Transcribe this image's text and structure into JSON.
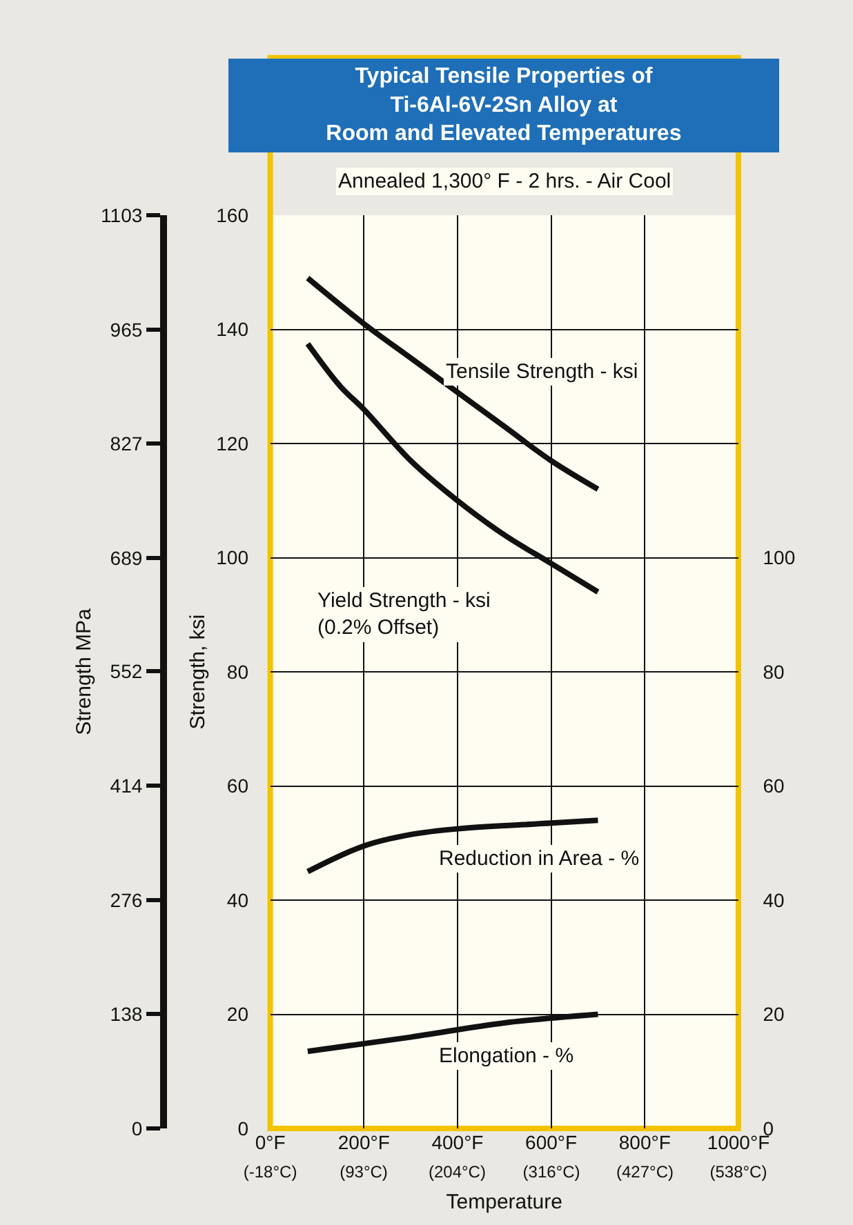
{
  "chart_data": {
    "type": "line",
    "title": "Typical Tensile Properties of\nTi-6Al-6V-2Sn Alloy at\nRoom and Elevated Temperatures",
    "xlabel": "Temperature",
    "ylabel": "Strength, ksi",
    "y2label": "Strength MPa",
    "annotations": [
      "Annealed 1,300° F - 2 hrs. - Air Cool"
    ],
    "series": [
      {
        "name": "Tensile Strength - ksi",
        "color": "#111111",
        "x": [
          80,
          200,
          300,
          400,
          500,
          600,
          700
        ],
        "values": [
          149,
          141,
          135,
          129,
          123,
          117,
          112
        ]
      },
      {
        "name": "Yield Strength - ksi\n(0.2% Offset)",
        "color": "#111111",
        "x": [
          80,
          150,
          200,
          300,
          400,
          500,
          600,
          700
        ],
        "values": [
          137.5,
          130,
          126,
          117,
          110,
          104,
          99,
          94
        ]
      },
      {
        "name": "Reduction in Area - %",
        "color": "#111111",
        "axis": "y3",
        "x": [
          80,
          200,
          300,
          400,
          600,
          700
        ],
        "values": [
          45,
          49.5,
          51.5,
          52.5,
          53.5,
          54
        ]
      },
      {
        "name": "Elongation - %",
        "color": "#111111",
        "axis": "y3",
        "x": [
          80,
          300,
          500,
          700
        ],
        "values": [
          13.5,
          16,
          18.5,
          20
        ]
      }
    ],
    "xlim": [
      0,
      1000
    ],
    "xticks": [
      {
        "value": 0,
        "label": "0°F"
      },
      {
        "value": 200,
        "label": "200°F"
      },
      {
        "value": 400,
        "label": "400°F"
      },
      {
        "value": 600,
        "label": "600°F"
      },
      {
        "value": 800,
        "label": "800°F"
      },
      {
        "value": 1000,
        "label": "1000°F"
      }
    ],
    "x2lim": [
      -18,
      538
    ],
    "x2ticks": [
      {
        "value": -18,
        "label": "(-18°C)"
      },
      {
        "value": 93,
        "label": "(93°C)"
      },
      {
        "value": 204,
        "label": "(204°C)"
      },
      {
        "value": 316,
        "label": "(316°C)"
      },
      {
        "value": 427,
        "label": "(427°C)"
      },
      {
        "value": 538,
        "label": "(538°C)"
      }
    ],
    "ylim": [
      0,
      160
    ],
    "yticks": [
      0,
      20,
      40,
      60,
      80,
      100,
      120,
      140,
      160
    ],
    "y2lim": [
      0,
      1103
    ],
    "y2ticks": [
      0,
      138,
      276,
      414,
      552,
      689,
      827,
      965,
      1103
    ],
    "y3lim": [
      0,
      160
    ],
    "y3ticks": [
      0,
      20,
      40,
      60,
      80,
      100
    ],
    "grid": true,
    "marker": "none",
    "line_style": "solid"
  }
}
